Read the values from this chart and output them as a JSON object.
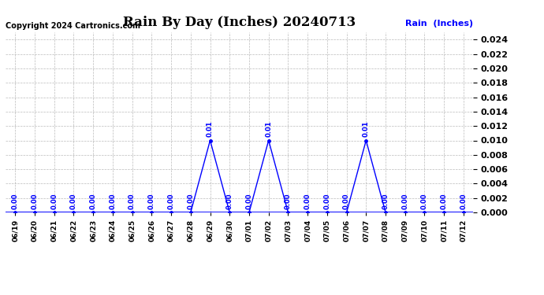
{
  "title": "Rain By Day (Inches) 20240713",
  "copyright": "Copyright 2024 Cartronics.com",
  "legend_label": "Rain  (Inches)",
  "dates": [
    "06/19",
    "06/20",
    "06/21",
    "06/22",
    "06/23",
    "06/24",
    "06/25",
    "06/26",
    "06/27",
    "06/28",
    "06/29",
    "06/30",
    "07/01",
    "07/02",
    "07/03",
    "07/04",
    "07/05",
    "07/06",
    "07/07",
    "07/08",
    "07/09",
    "07/10",
    "07/11",
    "07/12"
  ],
  "values": [
    0.0,
    0.0,
    0.0,
    0.0,
    0.0,
    0.0,
    0.0,
    0.0,
    0.0,
    0.0,
    0.01,
    0.0,
    0.0,
    0.01,
    0.0,
    0.0,
    0.0,
    0.0,
    0.01,
    0.0,
    0.0,
    0.0,
    0.0,
    0.0
  ],
  "line_color": "#0000ff",
  "bg_color": "#ffffff",
  "grid_color": "#aaaaaa",
  "title_color": "#000000",
  "copyright_color": "#000000",
  "legend_color": "#0000ff",
  "ylim": [
    0.0,
    0.025
  ],
  "yticks": [
    0.0,
    0.002,
    0.004,
    0.006,
    0.008,
    0.01,
    0.012,
    0.014,
    0.016,
    0.018,
    0.02,
    0.022,
    0.024
  ],
  "annotation_color": "#0000ff",
  "tick_color": "#000000",
  "title_fontsize": 12,
  "copyright_fontsize": 7,
  "legend_fontsize": 8,
  "ytick_fontsize": 8,
  "xtick_fontsize": 6.5,
  "annot_fontsize": 6
}
